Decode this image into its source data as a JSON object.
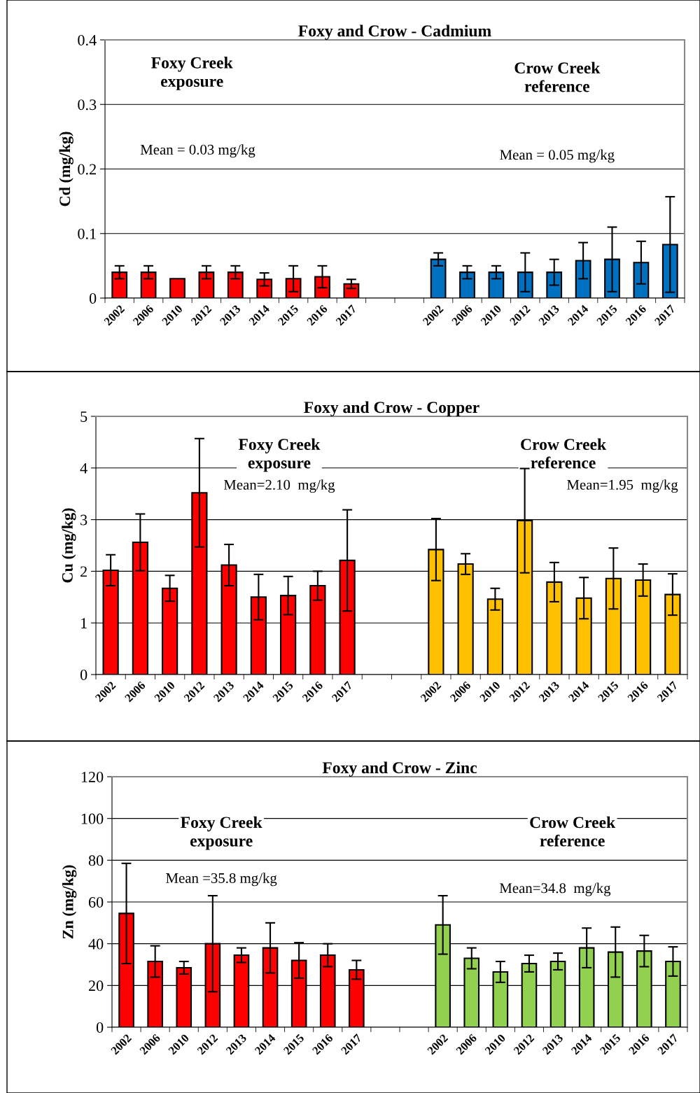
{
  "chart_data": [
    {
      "type": "bar",
      "title": "Foxy and Crow - Cadmium",
      "ylabel": "Cd (mg/kg)",
      "categories": [
        "2002",
        "2006",
        "2010",
        "2012",
        "2013",
        "2014",
        "2015",
        "2016",
        "2017",
        null,
        null,
        "2002",
        "2006",
        "2010",
        "2012",
        "2013",
        "2014",
        "2015",
        "2016",
        "2017"
      ],
      "values": [
        0.04,
        0.04,
        0.03,
        0.04,
        0.04,
        0.029,
        0.03,
        0.033,
        0.022,
        null,
        null,
        0.06,
        0.04,
        0.04,
        0.04,
        0.04,
        0.058,
        0.06,
        0.055,
        0.083
      ],
      "errors": [
        0.01,
        0.01,
        null,
        0.01,
        0.01,
        0.01,
        0.02,
        0.017,
        0.007,
        null,
        null,
        0.01,
        0.01,
        0.01,
        0.03,
        0.02,
        0.028,
        0.05,
        0.033,
        0.074
      ],
      "colors": [
        "#ff0000",
        "#ff0000",
        "#ff0000",
        "#ff0000",
        "#ff0000",
        "#ff0000",
        "#ff0000",
        "#ff0000",
        "#ff0000",
        "#ff0000",
        "#ff0000",
        "#0070c0",
        "#0070c0",
        "#0070c0",
        "#0070c0",
        "#0070c0",
        "#0070c0",
        "#0070c0",
        "#0070c0",
        "#0070c0"
      ],
      "ylim": [
        0,
        0.4
      ],
      "yticks": [
        {
          "value": 0,
          "label": "0"
        },
        0.1,
        0.2,
        0.3,
        0.4
      ],
      "grid": "y",
      "annotations": [
        "Foxy Creek\nexposure",
        "Crow Creek\nreference",
        "Mean = 0.03 mg/kg",
        "Mean = 0.05 mg/kg"
      ]
    },
    {
      "type": "bar",
      "title": "Foxy and Crow - Copper",
      "ylabel": "Cu (mg/kg)",
      "categories": [
        "2002",
        "2006",
        "2010",
        "2012",
        "2013",
        "2014",
        "2015",
        "2016",
        "2017",
        null,
        null,
        "2002",
        "2006",
        "2010",
        "2012",
        "2013",
        "2014",
        "2015",
        "2016",
        "2017"
      ],
      "values": [
        2.02,
        2.56,
        1.67,
        3.52,
        2.12,
        1.5,
        1.53,
        1.72,
        2.21,
        null,
        null,
        2.42,
        2.14,
        1.46,
        2.98,
        1.79,
        1.48,
        1.86,
        1.83,
        1.55
      ],
      "errors": [
        0.3,
        0.55,
        0.25,
        1.05,
        0.4,
        0.44,
        0.37,
        0.28,
        0.98,
        null,
        null,
        0.6,
        0.2,
        0.21,
        1.01,
        0.38,
        0.4,
        0.59,
        0.31,
        0.4
      ],
      "colors": [
        "#ff0000",
        "#ff0000",
        "#ff0000",
        "#ff0000",
        "#ff0000",
        "#ff0000",
        "#ff0000",
        "#ff0000",
        "#ff0000",
        "#ff0000",
        "#ff0000",
        "#ffc000",
        "#ffc000",
        "#ffc000",
        "#ffc000",
        "#ffc000",
        "#ffc000",
        "#ffc000",
        "#ffc000",
        "#ffc000"
      ],
      "ylim": [
        0,
        5
      ],
      "yticks": [
        0,
        1,
        2,
        3,
        4,
        5
      ],
      "grid": "y",
      "annotations": [
        "Foxy Creek\nexposure",
        "Crow Creek\nreference",
        "Mean=2.10  mg/kg",
        "Mean=1.95  mg/kg"
      ]
    },
    {
      "type": "bar",
      "title": "Foxy and Crow - Zinc",
      "ylabel": "Zn (mg/kg)",
      "categories": [
        "2002",
        "2006",
        "2010",
        "2012",
        "2013",
        "2014",
        "2015",
        "2016",
        "2017",
        null,
        null,
        "2002",
        "2006",
        "2010",
        "2012",
        "2013",
        "2014",
        "2015",
        "2016",
        "2017"
      ],
      "values": [
        54.5,
        31.5,
        28.5,
        40,
        34.5,
        38,
        32,
        34.5,
        27.5,
        null,
        null,
        49,
        33,
        26.5,
        30.5,
        31.5,
        38,
        36,
        36.5,
        31.5
      ],
      "errors": [
        24,
        7.5,
        3,
        23,
        3.5,
        12,
        8.5,
        5.5,
        4.5,
        null,
        null,
        14,
        5,
        5,
        4,
        4,
        9.5,
        12,
        7.5,
        7
      ],
      "colors": [
        "#ff0000",
        "#ff0000",
        "#ff0000",
        "#ff0000",
        "#ff0000",
        "#ff0000",
        "#ff0000",
        "#ff0000",
        "#ff0000",
        "#ff0000",
        "#ff0000",
        "#92d050",
        "#92d050",
        "#92d050",
        "#92d050",
        "#92d050",
        "#92d050",
        "#92d050",
        "#92d050",
        "#92d050"
      ],
      "ylim": [
        0,
        120
      ],
      "yticks": [
        0,
        20,
        40,
        60,
        80,
        100,
        120
      ],
      "grid": "y",
      "annotations": [
        "Foxy Creek\nexposure",
        "Crow Creek\nreference",
        "Mean =35.8 mg/kg",
        "Mean=34.8  mg/kg"
      ]
    }
  ]
}
